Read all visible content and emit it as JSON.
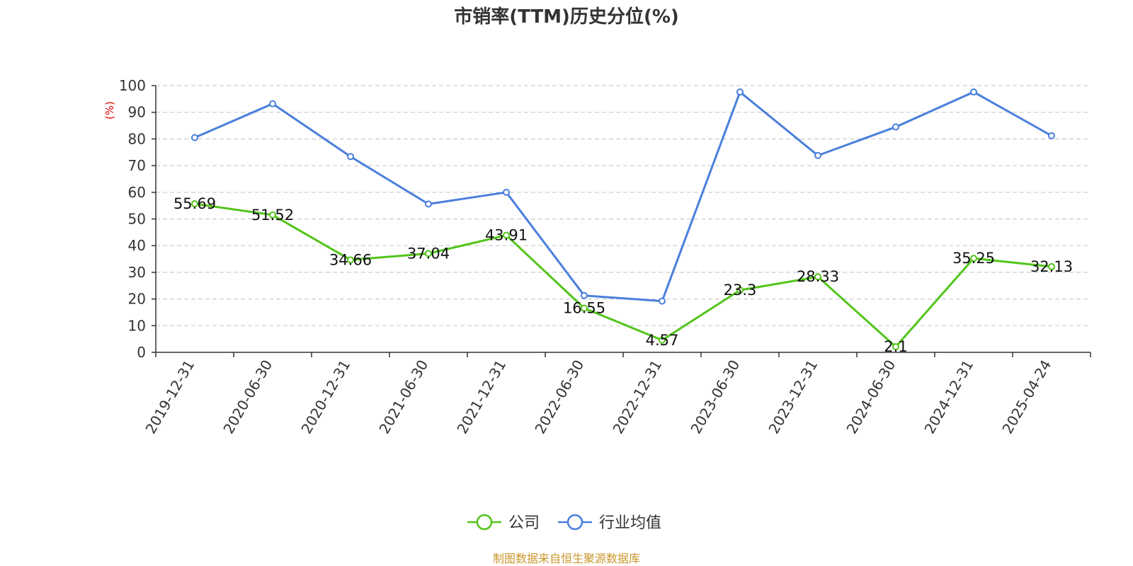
{
  "chart_data": {
    "type": "line",
    "title": "市销率(TTM)历史分位(%)",
    "y_unit": "(%)",
    "categories": [
      "2019-12-31",
      "2020-06-30",
      "2020-12-31",
      "2021-06-30",
      "2021-12-31",
      "2022-06-30",
      "2022-12-31",
      "2023-06-30",
      "2023-12-31",
      "2024-06-30",
      "2024-12-31",
      "2025-04-24"
    ],
    "y_ticks": [
      "0",
      "10",
      "20",
      "30",
      "40",
      "50",
      "60",
      "70",
      "80",
      "90",
      "100"
    ],
    "ylim": [
      0,
      100
    ],
    "grid": "horizontal-dashed",
    "legend_position": "bottom-center",
    "series": [
      {
        "name": "公司",
        "color": "#52c41a",
        "values": [
          55.69,
          51.52,
          34.66,
          37.04,
          43.91,
          16.55,
          4.57,
          23.3,
          28.33,
          2.1,
          35.25,
          32.13
        ],
        "labels": [
          "55.69",
          "51.52",
          "34.66",
          "37.04",
          "43.91",
          "16.55",
          "4.57",
          "23.3",
          "28.33",
          "2.1",
          "35.25",
          "32.13"
        ]
      },
      {
        "name": "行业均值",
        "color": "#4a7fdc",
        "values": [
          80.5,
          93.2,
          73.4,
          55.6,
          60.0,
          21.3,
          19.2,
          97.6,
          73.8,
          84.5,
          97.6,
          81.2
        ]
      }
    ]
  },
  "colors": {
    "axis": "#333333",
    "grid": "#cccccc",
    "unit": "#e00000",
    "source": "#c8962a"
  },
  "source_text": "制图数据来自恒生聚源数据库"
}
